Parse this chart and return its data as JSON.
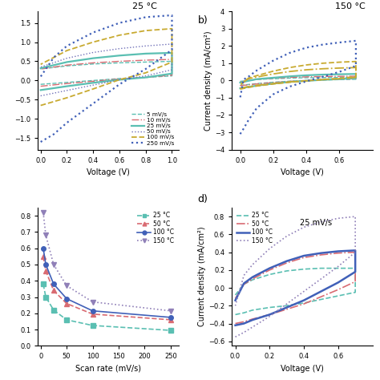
{
  "fig_width": 4.74,
  "fig_height": 4.74,
  "dpi": 100,
  "background": "#ffffff",
  "subplots": {
    "a": {
      "title": "25 °C",
      "xlabel": "Voltage (V)",
      "ylabel": "",
      "xlim": [
        -0.02,
        1.05
      ],
      "ylim": [
        -1.8,
        1.8
      ],
      "curves": [
        {
          "label": "5 mV/s",
          "color": "#5abfb2",
          "ls": "--",
          "lw": 1.0,
          "x_fwd": [
            0.0,
            0.2,
            0.4,
            0.6,
            0.8,
            1.0
          ],
          "y_fwd": [
            -0.1,
            -0.05,
            0.0,
            0.05,
            0.08,
            0.12
          ],
          "x_bwd": [
            1.0,
            0.8,
            0.6,
            0.4,
            0.2,
            0.0
          ],
          "y_bwd": [
            0.5,
            0.48,
            0.46,
            0.43,
            0.38,
            0.3
          ]
        },
        {
          "label": "10 mV/s",
          "color": "#d96b72",
          "ls": "-.",
          "lw": 1.0,
          "x_fwd": [
            0.0,
            0.2,
            0.4,
            0.6,
            0.8,
            1.0
          ],
          "y_fwd": [
            -0.15,
            -0.08,
            -0.02,
            0.04,
            0.08,
            0.14
          ],
          "x_bwd": [
            1.0,
            0.8,
            0.6,
            0.4,
            0.2,
            0.0
          ],
          "y_bwd": [
            0.55,
            0.53,
            0.5,
            0.46,
            0.4,
            0.3
          ]
        },
        {
          "label": "25 mV/s",
          "color": "#5abfb2",
          "ls": "-",
          "lw": 1.6,
          "x_fwd": [
            0.0,
            0.2,
            0.4,
            0.6,
            0.8,
            1.0
          ],
          "y_fwd": [
            -0.25,
            -0.15,
            -0.06,
            0.02,
            0.08,
            0.18
          ],
          "x_bwd": [
            1.0,
            0.8,
            0.6,
            0.4,
            0.2,
            0.0
          ],
          "y_bwd": [
            0.72,
            0.7,
            0.65,
            0.58,
            0.48,
            0.32
          ]
        },
        {
          "label": "50 mV/s",
          "color": "#7070b8",
          "ls": ":",
          "lw": 1.0,
          "x_fwd": [
            0.0,
            0.2,
            0.4,
            0.6,
            0.8,
            1.0
          ],
          "y_fwd": [
            -0.4,
            -0.26,
            -0.12,
            0.02,
            0.12,
            0.28
          ],
          "x_bwd": [
            1.0,
            0.8,
            0.6,
            0.4,
            0.2,
            0.0
          ],
          "y_bwd": [
            0.95,
            0.9,
            0.83,
            0.73,
            0.58,
            0.35
          ]
        },
        {
          "label": "100 mV/s",
          "color": "#c8aa30",
          "ls": "--",
          "lw": 1.3,
          "x_fwd": [
            0.0,
            0.2,
            0.4,
            0.6,
            0.8,
            1.0
          ],
          "y_fwd": [
            -0.65,
            -0.45,
            -0.22,
            0.02,
            0.2,
            0.48
          ],
          "x_bwd": [
            1.0,
            0.8,
            0.6,
            0.4,
            0.2,
            0.0
          ],
          "y_bwd": [
            1.35,
            1.3,
            1.18,
            1.0,
            0.78,
            0.42
          ]
        },
        {
          "label": "250 mV/s",
          "color": "#4060b8",
          "ls": ":",
          "lw": 1.6,
          "x_fwd": [
            0.0,
            0.1,
            0.2,
            0.4,
            0.6,
            0.8,
            1.0
          ],
          "y_fwd": [
            -1.6,
            -1.4,
            -1.1,
            -0.6,
            -0.1,
            0.3,
            0.8
          ],
          "x_bwd": [
            1.0,
            0.8,
            0.6,
            0.4,
            0.2,
            0.1,
            0.0
          ],
          "y_bwd": [
            1.7,
            1.65,
            1.5,
            1.25,
            0.9,
            0.6,
            0.1
          ]
        }
      ]
    },
    "b": {
      "title": "150 °C",
      "xlabel": "Voltage (V)",
      "ylabel": "Current density (mA/cm²)",
      "xlim": [
        -0.05,
        0.8
      ],
      "ylim": [
        -4.0,
        4.0
      ],
      "curves": [
        {
          "label": "5 mV/s",
          "color": "#5abfb2",
          "ls": "--",
          "lw": 1.0,
          "x_fwd": [
            0.0,
            0.1,
            0.2,
            0.3,
            0.4,
            0.5,
            0.6,
            0.7
          ],
          "y_fwd": [
            -0.28,
            -0.18,
            -0.1,
            -0.04,
            0.0,
            0.03,
            0.05,
            0.07
          ],
          "x_bwd": [
            0.7,
            0.6,
            0.5,
            0.4,
            0.3,
            0.2,
            0.1,
            0.0
          ],
          "y_bwd": [
            0.18,
            0.18,
            0.17,
            0.16,
            0.14,
            0.1,
            0.06,
            -0.05
          ]
        },
        {
          "label": "10 mV/s",
          "color": "#d96b72",
          "ls": "-.",
          "lw": 1.0,
          "x_fwd": [
            0.0,
            0.1,
            0.2,
            0.3,
            0.4,
            0.5,
            0.6,
            0.7
          ],
          "y_fwd": [
            -0.3,
            -0.2,
            -0.12,
            -0.05,
            0.0,
            0.04,
            0.07,
            0.1
          ],
          "x_bwd": [
            0.7,
            0.6,
            0.5,
            0.4,
            0.3,
            0.2,
            0.1,
            0.0
          ],
          "y_bwd": [
            0.25,
            0.24,
            0.23,
            0.21,
            0.18,
            0.13,
            0.07,
            -0.07
          ]
        },
        {
          "label": "25 mV/s",
          "color": "#5abfb2",
          "ls": "-",
          "lw": 1.6,
          "x_fwd": [
            0.0,
            0.1,
            0.2,
            0.3,
            0.4,
            0.5,
            0.6,
            0.7
          ],
          "y_fwd": [
            -0.45,
            -0.3,
            -0.18,
            -0.08,
            -0.02,
            0.04,
            0.08,
            0.14
          ],
          "x_bwd": [
            0.7,
            0.6,
            0.5,
            0.4,
            0.3,
            0.2,
            0.1,
            0.0
          ],
          "y_bwd": [
            0.38,
            0.36,
            0.34,
            0.3,
            0.24,
            0.16,
            0.08,
            -0.12
          ]
        },
        {
          "label": "50 mV/s",
          "color": "#c8aa30",
          "ls": "-.",
          "lw": 1.3,
          "x_fwd": [
            0.0,
            0.05,
            0.1,
            0.2,
            0.3,
            0.4,
            0.5,
            0.6,
            0.7
          ],
          "y_fwd": [
            -0.45,
            -0.35,
            -0.28,
            -0.18,
            -0.08,
            -0.02,
            0.05,
            0.1,
            0.18
          ],
          "x_bwd": [
            0.7,
            0.6,
            0.5,
            0.4,
            0.3,
            0.2,
            0.1,
            0.05,
            0.0
          ],
          "y_bwd": [
            0.75,
            0.72,
            0.68,
            0.62,
            0.52,
            0.38,
            0.2,
            0.1,
            -0.2
          ]
        },
        {
          "label": "100 mV/s",
          "color": "#c8aa30",
          "ls": "--",
          "lw": 1.3,
          "x_fwd": [
            0.0,
            0.05,
            0.1,
            0.2,
            0.3,
            0.4,
            0.5,
            0.6,
            0.7
          ],
          "y_fwd": [
            -0.5,
            -0.4,
            -0.32,
            -0.2,
            -0.1,
            -0.02,
            0.06,
            0.12,
            0.22
          ],
          "x_bwd": [
            0.7,
            0.6,
            0.5,
            0.4,
            0.3,
            0.2,
            0.1,
            0.05,
            0.0
          ],
          "y_bwd": [
            1.1,
            1.06,
            1.0,
            0.9,
            0.75,
            0.54,
            0.28,
            0.14,
            -0.28
          ]
        },
        {
          "label": "250 mV/s",
          "color": "#4060b8",
          "ls": ":",
          "lw": 1.6,
          "x_fwd": [
            0.0,
            0.02,
            0.05,
            0.1,
            0.2,
            0.3,
            0.4,
            0.5,
            0.6,
            0.7
          ],
          "y_fwd": [
            -3.1,
            -2.8,
            -2.3,
            -1.6,
            -0.8,
            -0.35,
            -0.05,
            0.22,
            0.5,
            0.85
          ],
          "x_bwd": [
            0.7,
            0.6,
            0.5,
            0.4,
            0.3,
            0.2,
            0.1,
            0.05,
            0.02,
            0.0
          ],
          "y_bwd": [
            2.3,
            2.2,
            2.08,
            1.9,
            1.6,
            1.15,
            0.58,
            0.22,
            0.05,
            -1.0
          ]
        }
      ]
    },
    "c": {
      "xlabel": "Scan rate (mV/s)",
      "ylabel": "",
      "xlim": [
        -5,
        265
      ],
      "ylim": [
        0.0,
        0.85
      ],
      "series": [
        {
          "label": "25 °C",
          "color": "#5abfb2",
          "ls": "--",
          "marker": "s",
          "ms": 4,
          "x": [
            5,
            10,
            25,
            50,
            100,
            250
          ],
          "y": [
            0.38,
            0.3,
            0.22,
            0.16,
            0.125,
            0.095
          ]
        },
        {
          "label": "50 °C",
          "color": "#d96b72",
          "ls": "--",
          "marker": "^",
          "ms": 4,
          "x": [
            5,
            10,
            25,
            50,
            100,
            250
          ],
          "y": [
            0.55,
            0.46,
            0.34,
            0.26,
            0.195,
            0.16
          ]
        },
        {
          "label": "100 °C",
          "color": "#4060b8",
          "ls": "-",
          "marker": "o",
          "ms": 4,
          "x": [
            5,
            10,
            25,
            50,
            100,
            250
          ],
          "y": [
            0.6,
            0.5,
            0.38,
            0.29,
            0.215,
            0.175
          ]
        },
        {
          "label": "150 °C",
          "color": "#9080b8",
          "ls": ":",
          "marker": "v",
          "ms": 4,
          "x": [
            5,
            10,
            25,
            50,
            100,
            250
          ],
          "y": [
            0.82,
            0.68,
            0.5,
            0.37,
            0.27,
            0.215
          ]
        }
      ]
    },
    "d": {
      "title": "25 mV/s",
      "xlabel": "Voltage (V)",
      "ylabel": "Current density (mA/cm²)",
      "xlim": [
        -0.02,
        0.8
      ],
      "ylim": [
        -0.65,
        0.9
      ],
      "series": [
        {
          "label": "25 °C",
          "color": "#5abfb2",
          "ls": "--",
          "lw": 1.2,
          "x_fwd": [
            0.0,
            0.05,
            0.1,
            0.2,
            0.3,
            0.4,
            0.5,
            0.6,
            0.7
          ],
          "y_fwd": [
            -0.3,
            -0.28,
            -0.25,
            -0.22,
            -0.2,
            -0.17,
            -0.13,
            -0.09,
            -0.05
          ],
          "x_bwd": [
            0.7,
            0.6,
            0.5,
            0.4,
            0.3,
            0.2,
            0.1,
            0.05,
            0.0
          ],
          "y_bwd": [
            0.22,
            0.22,
            0.22,
            0.21,
            0.19,
            0.15,
            0.09,
            0.04,
            -0.08
          ]
        },
        {
          "label": "50 °C",
          "color": "#d96b72",
          "ls": "-.",
          "lw": 1.2,
          "x_fwd": [
            0.0,
            0.05,
            0.1,
            0.2,
            0.3,
            0.4,
            0.5,
            0.6,
            0.7
          ],
          "y_fwd": [
            -0.4,
            -0.38,
            -0.35,
            -0.3,
            -0.24,
            -0.18,
            -0.1,
            -0.02,
            0.07
          ],
          "x_bwd": [
            0.7,
            0.6,
            0.5,
            0.4,
            0.3,
            0.2,
            0.1,
            0.05,
            0.0
          ],
          "y_bwd": [
            0.4,
            0.39,
            0.37,
            0.34,
            0.28,
            0.2,
            0.1,
            0.04,
            -0.12
          ]
        },
        {
          "label": "100 °C",
          "color": "#4060b8",
          "ls": "-",
          "lw": 1.8,
          "x_fwd": [
            0.0,
            0.05,
            0.1,
            0.2,
            0.3,
            0.4,
            0.5,
            0.6,
            0.7
          ],
          "y_fwd": [
            -0.42,
            -0.4,
            -0.36,
            -0.3,
            -0.22,
            -0.14,
            -0.04,
            0.06,
            0.18
          ],
          "x_bwd": [
            0.7,
            0.6,
            0.5,
            0.4,
            0.3,
            0.2,
            0.1,
            0.05,
            0.0
          ],
          "y_bwd": [
            0.42,
            0.41,
            0.39,
            0.36,
            0.3,
            0.22,
            0.12,
            0.05,
            -0.14
          ]
        },
        {
          "label": "150 °C",
          "color": "#9080b8",
          "ls": ":",
          "lw": 1.2,
          "x_fwd": [
            0.0,
            0.05,
            0.1,
            0.2,
            0.3,
            0.4,
            0.5,
            0.6,
            0.7
          ],
          "y_fwd": [
            -0.55,
            -0.5,
            -0.44,
            -0.32,
            -0.18,
            -0.04,
            0.1,
            0.24,
            0.4
          ],
          "x_bwd": [
            0.7,
            0.6,
            0.5,
            0.4,
            0.3,
            0.2,
            0.1,
            0.05,
            0.0
          ],
          "y_bwd": [
            0.8,
            0.78,
            0.74,
            0.68,
            0.58,
            0.44,
            0.26,
            0.14,
            -0.2
          ]
        }
      ]
    }
  }
}
